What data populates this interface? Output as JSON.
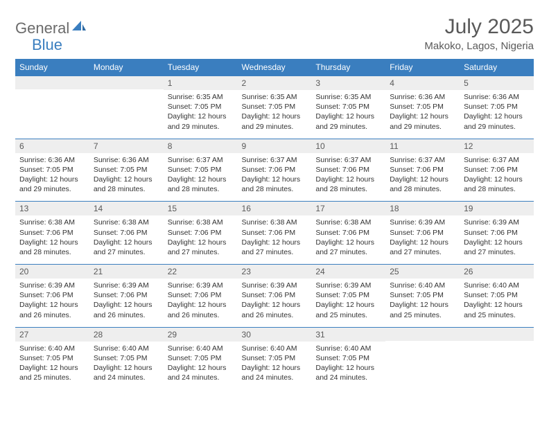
{
  "brand": {
    "part1": "General",
    "part2": "Blue"
  },
  "title": "July 2025",
  "location": "Makoko, Lagos, Nigeria",
  "colors": {
    "header_bg": "#3a7ebf",
    "header_text": "#ffffff",
    "daynum_bg": "#eeeeee",
    "text": "#333333",
    "title_text": "#595959",
    "logo_gray": "#6b6b6b",
    "logo_blue": "#3a7ebf",
    "border": "#3a7ebf"
  },
  "weekdays": [
    "Sunday",
    "Monday",
    "Tuesday",
    "Wednesday",
    "Thursday",
    "Friday",
    "Saturday"
  ],
  "labels": {
    "sunrise": "Sunrise:",
    "sunset": "Sunset:",
    "daylight": "Daylight:"
  },
  "weeks": [
    [
      null,
      null,
      {
        "n": "1",
        "sr": "6:35 AM",
        "ss": "7:05 PM",
        "dl": "12 hours and 29 minutes."
      },
      {
        "n": "2",
        "sr": "6:35 AM",
        "ss": "7:05 PM",
        "dl": "12 hours and 29 minutes."
      },
      {
        "n": "3",
        "sr": "6:35 AM",
        "ss": "7:05 PM",
        "dl": "12 hours and 29 minutes."
      },
      {
        "n": "4",
        "sr": "6:36 AM",
        "ss": "7:05 PM",
        "dl": "12 hours and 29 minutes."
      },
      {
        "n": "5",
        "sr": "6:36 AM",
        "ss": "7:05 PM",
        "dl": "12 hours and 29 minutes."
      }
    ],
    [
      {
        "n": "6",
        "sr": "6:36 AM",
        "ss": "7:05 PM",
        "dl": "12 hours and 29 minutes."
      },
      {
        "n": "7",
        "sr": "6:36 AM",
        "ss": "7:05 PM",
        "dl": "12 hours and 28 minutes."
      },
      {
        "n": "8",
        "sr": "6:37 AM",
        "ss": "7:05 PM",
        "dl": "12 hours and 28 minutes."
      },
      {
        "n": "9",
        "sr": "6:37 AM",
        "ss": "7:06 PM",
        "dl": "12 hours and 28 minutes."
      },
      {
        "n": "10",
        "sr": "6:37 AM",
        "ss": "7:06 PM",
        "dl": "12 hours and 28 minutes."
      },
      {
        "n": "11",
        "sr": "6:37 AM",
        "ss": "7:06 PM",
        "dl": "12 hours and 28 minutes."
      },
      {
        "n": "12",
        "sr": "6:37 AM",
        "ss": "7:06 PM",
        "dl": "12 hours and 28 minutes."
      }
    ],
    [
      {
        "n": "13",
        "sr": "6:38 AM",
        "ss": "7:06 PM",
        "dl": "12 hours and 28 minutes."
      },
      {
        "n": "14",
        "sr": "6:38 AM",
        "ss": "7:06 PM",
        "dl": "12 hours and 27 minutes."
      },
      {
        "n": "15",
        "sr": "6:38 AM",
        "ss": "7:06 PM",
        "dl": "12 hours and 27 minutes."
      },
      {
        "n": "16",
        "sr": "6:38 AM",
        "ss": "7:06 PM",
        "dl": "12 hours and 27 minutes."
      },
      {
        "n": "17",
        "sr": "6:38 AM",
        "ss": "7:06 PM",
        "dl": "12 hours and 27 minutes."
      },
      {
        "n": "18",
        "sr": "6:39 AM",
        "ss": "7:06 PM",
        "dl": "12 hours and 27 minutes."
      },
      {
        "n": "19",
        "sr": "6:39 AM",
        "ss": "7:06 PM",
        "dl": "12 hours and 27 minutes."
      }
    ],
    [
      {
        "n": "20",
        "sr": "6:39 AM",
        "ss": "7:06 PM",
        "dl": "12 hours and 26 minutes."
      },
      {
        "n": "21",
        "sr": "6:39 AM",
        "ss": "7:06 PM",
        "dl": "12 hours and 26 minutes."
      },
      {
        "n": "22",
        "sr": "6:39 AM",
        "ss": "7:06 PM",
        "dl": "12 hours and 26 minutes."
      },
      {
        "n": "23",
        "sr": "6:39 AM",
        "ss": "7:06 PM",
        "dl": "12 hours and 26 minutes."
      },
      {
        "n": "24",
        "sr": "6:39 AM",
        "ss": "7:05 PM",
        "dl": "12 hours and 25 minutes."
      },
      {
        "n": "25",
        "sr": "6:40 AM",
        "ss": "7:05 PM",
        "dl": "12 hours and 25 minutes."
      },
      {
        "n": "26",
        "sr": "6:40 AM",
        "ss": "7:05 PM",
        "dl": "12 hours and 25 minutes."
      }
    ],
    [
      {
        "n": "27",
        "sr": "6:40 AM",
        "ss": "7:05 PM",
        "dl": "12 hours and 25 minutes."
      },
      {
        "n": "28",
        "sr": "6:40 AM",
        "ss": "7:05 PM",
        "dl": "12 hours and 24 minutes."
      },
      {
        "n": "29",
        "sr": "6:40 AM",
        "ss": "7:05 PM",
        "dl": "12 hours and 24 minutes."
      },
      {
        "n": "30",
        "sr": "6:40 AM",
        "ss": "7:05 PM",
        "dl": "12 hours and 24 minutes."
      },
      {
        "n": "31",
        "sr": "6:40 AM",
        "ss": "7:05 PM",
        "dl": "12 hours and 24 minutes."
      },
      null,
      null
    ]
  ]
}
